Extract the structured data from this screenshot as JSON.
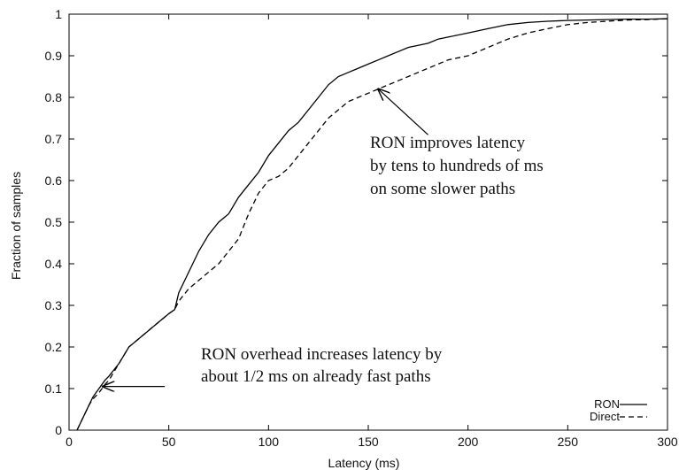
{
  "chart_data": {
    "type": "line",
    "title": "",
    "xlabel": "Latency (ms)",
    "ylabel": "Fraction of samples",
    "xlim": [
      0,
      300
    ],
    "ylim": [
      0,
      1
    ],
    "xticks": [
      0,
      50,
      100,
      150,
      200,
      250,
      300
    ],
    "yticks": [
      0,
      0.1,
      0.2,
      0.3,
      0.4,
      0.5,
      0.6,
      0.7,
      0.8,
      0.9,
      1
    ],
    "grid": false,
    "legend_position": "bottom-right",
    "series": [
      {
        "name": "RON",
        "style": "solid",
        "color": "#000000",
        "x": [
          4,
          6,
          8,
          10,
          12,
          15,
          18,
          20,
          25,
          30,
          35,
          40,
          45,
          50,
          53,
          55,
          60,
          65,
          70,
          75,
          80,
          85,
          90,
          95,
          100,
          105,
          110,
          115,
          120,
          125,
          130,
          135,
          140,
          145,
          150,
          155,
          160,
          165,
          170,
          175,
          180,
          185,
          190,
          200,
          210,
          220,
          230,
          240,
          250,
          260,
          270,
          280,
          290,
          300
        ],
        "y": [
          0,
          0.02,
          0.04,
          0.06,
          0.08,
          0.1,
          0.12,
          0.13,
          0.16,
          0.2,
          0.22,
          0.24,
          0.26,
          0.28,
          0.29,
          0.33,
          0.38,
          0.43,
          0.47,
          0.5,
          0.52,
          0.56,
          0.59,
          0.62,
          0.66,
          0.69,
          0.72,
          0.74,
          0.77,
          0.8,
          0.83,
          0.85,
          0.86,
          0.87,
          0.88,
          0.89,
          0.9,
          0.91,
          0.92,
          0.925,
          0.93,
          0.94,
          0.945,
          0.955,
          0.965,
          0.975,
          0.98,
          0.983,
          0.985,
          0.986,
          0.987,
          0.988,
          0.988,
          0.989
        ]
      },
      {
        "name": "Direct",
        "style": "dashed",
        "color": "#000000",
        "x": [
          4,
          6,
          8,
          10,
          12,
          15,
          18,
          20,
          25,
          30,
          35,
          40,
          45,
          50,
          53,
          55,
          60,
          65,
          70,
          75,
          80,
          85,
          90,
          95,
          100,
          105,
          110,
          115,
          120,
          125,
          130,
          135,
          140,
          145,
          150,
          155,
          160,
          165,
          170,
          175,
          180,
          185,
          190,
          200,
          210,
          220,
          230,
          240,
          250,
          260,
          270,
          280,
          290,
          300
        ],
        "y": [
          0,
          0.02,
          0.04,
          0.06,
          0.075,
          0.09,
          0.11,
          0.12,
          0.16,
          0.2,
          0.22,
          0.24,
          0.26,
          0.28,
          0.29,
          0.31,
          0.34,
          0.36,
          0.38,
          0.4,
          0.43,
          0.46,
          0.52,
          0.57,
          0.6,
          0.61,
          0.63,
          0.66,
          0.69,
          0.72,
          0.75,
          0.77,
          0.79,
          0.8,
          0.81,
          0.82,
          0.83,
          0.84,
          0.85,
          0.86,
          0.87,
          0.88,
          0.89,
          0.9,
          0.92,
          0.94,
          0.955,
          0.965,
          0.975,
          0.98,
          0.983,
          0.986,
          0.987,
          0.989
        ]
      }
    ],
    "annotations": [
      {
        "lines": [
          "RON improves latency",
          "by tens to hundreds of ms",
          "on some slower paths"
        ],
        "arrow_to": [
          155,
          0.82
        ],
        "arrow_from": [
          180,
          0.71
        ]
      },
      {
        "lines": [
          "RON overhead increases latency by",
          "about 1/2 ms on already fast paths"
        ],
        "arrow_to": [
          17,
          0.105
        ],
        "arrow_from": [
          48,
          0.105
        ]
      }
    ]
  }
}
